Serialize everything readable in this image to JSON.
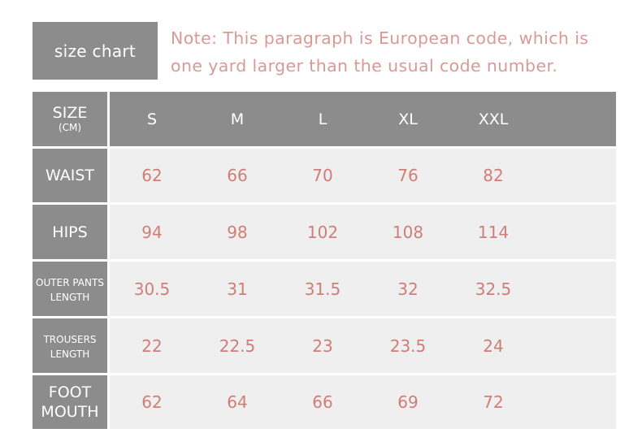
{
  "size_chart_label": "size chart",
  "note": "Note: This paragraph is European code, which is one yard larger than the usual code number.",
  "table": {
    "corner_label": "SIZE",
    "corner_unit": "(CM)",
    "sizes": [
      "S",
      "M",
      "L",
      "XL",
      "XXL"
    ],
    "rows": [
      {
        "label_line1": "WAIST",
        "label_line2": "",
        "values": [
          "62",
          "66",
          "70",
          "76",
          "82"
        ]
      },
      {
        "label_line1": "HIPS",
        "label_line2": "",
        "values": [
          "94",
          "98",
          "102",
          "108",
          "114"
        ]
      },
      {
        "label_line1": "OUTER PANTS",
        "label_line2": "LENGTH",
        "values": [
          "30.5",
          "31",
          "31.5",
          "32",
          "32.5"
        ]
      },
      {
        "label_line1": "TROUSERS",
        "label_line2": "LENGTH",
        "values": [
          "22",
          "22.5",
          "23",
          "23.5",
          "24"
        ]
      },
      {
        "label_line1": "FOOT",
        "label_line2": "MOUTH",
        "values": [
          "62",
          "64",
          "66",
          "69",
          "72"
        ]
      }
    ]
  },
  "colors": {
    "header_gray": "#8c8c8c",
    "cell_background": "#efefef",
    "value_text": "#d17d77",
    "note_text": "#d89a96"
  }
}
